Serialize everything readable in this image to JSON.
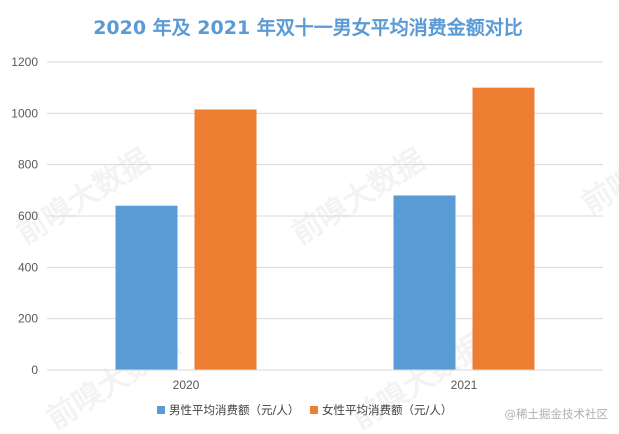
{
  "chart_data": {
    "type": "bar",
    "title": "2020 年及 2021 年双十一男女平均消费金额对比",
    "categories": [
      "2020",
      "2021"
    ],
    "series": [
      {
        "name": "男性平均消费额（元/人）",
        "values": [
          640,
          680
        ],
        "color": "#5b9bd5"
      },
      {
        "name": "女性平均消费额（元/人）",
        "values": [
          1015,
          1100
        ],
        "color": "#ed7d31"
      }
    ],
    "ylim": [
      0,
      1200
    ],
    "yticks": [
      0,
      200,
      400,
      600,
      800,
      1000,
      1200
    ],
    "grid": true,
    "legend": "bottom",
    "xlabel": "",
    "ylabel": ""
  },
  "watermark": "前嗅大数据",
  "credit": "@稀土掘金技术社区"
}
